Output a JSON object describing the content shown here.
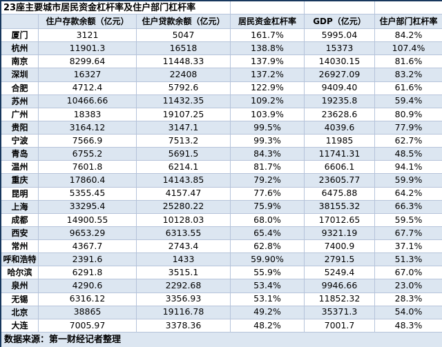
{
  "title": "23座主要城市居民资金杠杆率及住户部门杠杆率",
  "source_note": "数据来源：第一财经记者整理",
  "colors": {
    "band_fill": "#dce6f1",
    "gridline": "#b5c3da",
    "frame_border": "#17375d",
    "text": "#000000"
  },
  "chart_data": {
    "type": "table",
    "title": "23座主要城市居民资金杠杆率及住户部门杠杆率",
    "columns": [
      "",
      "住户存款余额（亿元）",
      "住户贷款余额（亿元）",
      "居民资金杠杆率",
      "GDP（亿元）",
      "住户部门杠杆率"
    ],
    "rows": [
      [
        "厦门",
        "3121",
        "5047",
        "161.7%",
        "5995.04",
        "84.2%"
      ],
      [
        "杭州",
        "11901.3",
        "16518",
        "138.8%",
        "15373",
        "107.4%"
      ],
      [
        "南京",
        "8299.64",
        "11448.33",
        "137.9%",
        "14030.15",
        "81.6%"
      ],
      [
        "深圳",
        "16327",
        "22408",
        "137.2%",
        "26927.09",
        "83.2%"
      ],
      [
        "合肥",
        "4712.4",
        "5792.6",
        "122.9%",
        "9409.40",
        "61.6%"
      ],
      [
        "苏州",
        "10466.66",
        "11432.35",
        "109.2%",
        "19235.8",
        "59.4%"
      ],
      [
        "广州",
        "18383",
        "19107.25",
        "103.9%",
        "23628.6",
        "80.9%"
      ],
      [
        "贵阳",
        "3164.12",
        "3147.1",
        "99.5%",
        "4039.6",
        "77.9%"
      ],
      [
        "宁波",
        "7566.9",
        "7513.2",
        "99.3%",
        "11985",
        "62.7%"
      ],
      [
        "青岛",
        "6755.2",
        "5691.5",
        "84.3%",
        "11741.31",
        "48.5%"
      ],
      [
        "温州",
        "7601.8",
        "6214.1",
        "81.7%",
        "6606.1",
        "94.1%"
      ],
      [
        "重庆",
        "17860.4",
        "14143.85",
        "79.2%",
        "23605.77",
        "59.9%"
      ],
      [
        "昆明",
        "5355.45",
        "4157.47",
        "77.6%",
        "6475.88",
        "64.2%"
      ],
      [
        "上海",
        "33295.4",
        "25280.22",
        "75.9%",
        "38155.32",
        "66.3%"
      ],
      [
        "成都",
        "14900.55",
        "10128.03",
        "68.0%",
        "17012.65",
        "59.5%"
      ],
      [
        "西安",
        "9653.29",
        "6313.55",
        "65.4%",
        "9321.19",
        "67.7%"
      ],
      [
        "常州",
        "4367.7",
        "2743.4",
        "62.8%",
        "7400.9",
        "37.1%"
      ],
      [
        "呼和浩特",
        "2391.6",
        "1433",
        "59.90%",
        "2791.5",
        "51.3%"
      ],
      [
        "哈尔滨",
        "6291.8",
        "3515.1",
        "55.9%",
        "5249.4",
        "67.0%"
      ],
      [
        "泉州",
        "4290.6",
        "2292.68",
        "53.4%",
        "9946.66",
        "23.0%"
      ],
      [
        "无锡",
        "6316.12",
        "3356.93",
        "53.1%",
        "11852.32",
        "28.3%"
      ],
      [
        "北京",
        "38865",
        "19116.78",
        "49.2%",
        "35371.3",
        "54.0%"
      ],
      [
        "大连",
        "7005.97",
        "3378.36",
        "48.2%",
        "7001.7",
        "48.3%"
      ]
    ],
    "source": "数据来源：第一财经记者整理",
    "layout": {
      "banded_rows": true,
      "first_data_row_fill": "white",
      "header_fill": "#dce6f1"
    }
  }
}
